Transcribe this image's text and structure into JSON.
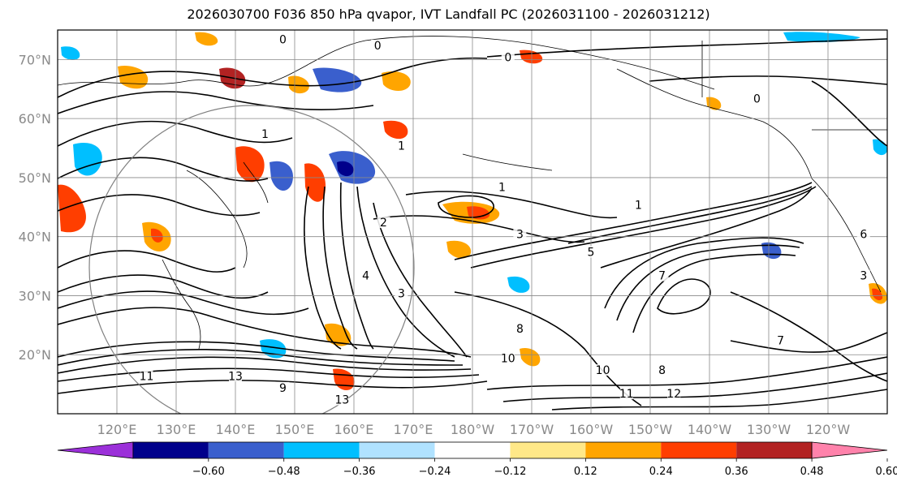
{
  "chart_data": {
    "type": "contour-map",
    "title": "2026030700 F036 850 hPa qvapor, IVT Landfall PC (2026031100 - 2026031212)",
    "lat_ticks": [
      "70°N",
      "60°N",
      "50°N",
      "40°N",
      "30°N",
      "20°N"
    ],
    "lat_values": [
      70,
      60,
      50,
      40,
      30,
      20
    ],
    "lon_ticks": [
      "120°E",
      "130°E",
      "140°E",
      "150°E",
      "160°E",
      "170°E",
      "180°W",
      "170°W",
      "160°W",
      "150°W",
      "140°W",
      "130°W",
      "120°W"
    ],
    "lon_values": [
      120,
      130,
      140,
      150,
      160,
      170,
      180,
      190,
      200,
      210,
      220,
      230,
      240
    ],
    "lat_range": [
      10,
      75
    ],
    "lon_range": [
      110,
      250
    ],
    "grid": true,
    "colorbar": {
      "extend": "both",
      "colors": [
        "#9b30d9",
        "#00008b",
        "#3a5fcd",
        "#00bfff",
        "#b0e2ff",
        "#ffffff",
        "#ffe888",
        "#ffa500",
        "#ff3e00",
        "#b22222",
        "#ff82ab"
      ],
      "ticks": [
        "−0.60",
        "−0.48",
        "−0.36",
        "−0.24",
        "−0.12",
        "0.12",
        "0.24",
        "0.36",
        "0.48",
        "0.60"
      ]
    },
    "contour_labels": [
      "0",
      "0",
      "0",
      "0",
      "1",
      "1",
      "1",
      "1",
      "2",
      "3",
      "3",
      "3",
      "4",
      "5",
      "6",
      "7",
      "7",
      "8",
      "8",
      "9",
      "10",
      "10",
      "11",
      "11",
      "12",
      "13",
      "13"
    ],
    "contour_label_positions_deg": [
      [
        148,
        73
      ],
      [
        164,
        72
      ],
      [
        186,
        70
      ],
      [
        228,
        63
      ],
      [
        145,
        57
      ],
      [
        168,
        55
      ],
      [
        185,
        48
      ],
      [
        208,
        45
      ],
      [
        165,
        42
      ],
      [
        188,
        40
      ],
      [
        168,
        30
      ],
      [
        246,
        33
      ],
      [
        162,
        33
      ],
      [
        200,
        37
      ],
      [
        246,
        40
      ],
      [
        212,
        33
      ],
      [
        232,
        22
      ],
      [
        188,
        24
      ],
      [
        212,
        17
      ],
      [
        148,
        14
      ],
      [
        186,
        19
      ],
      [
        202,
        17
      ],
      [
        125,
        16
      ],
      [
        206,
        13
      ],
      [
        214,
        13
      ],
      [
        158,
        12
      ],
      [
        140,
        16
      ]
    ]
  }
}
